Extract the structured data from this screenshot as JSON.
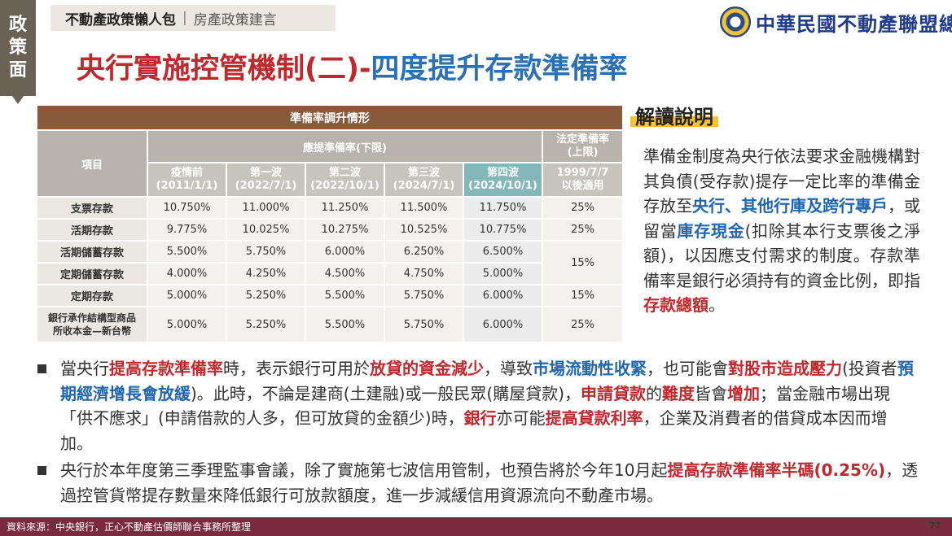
{
  "side_tab": [
    "政",
    "策",
    "面"
  ],
  "breadcrumb": {
    "main": "不動產政策懶人包",
    "sep": "|",
    "sub": "房產政策建言"
  },
  "logo": {
    "text": "中華民國不動產聯盟總會"
  },
  "title": {
    "part1": "央行實施控管機制(二)-",
    "part2": "四度提升存款準備率"
  },
  "table": {
    "caption": "準備率調升情形",
    "item_header": "項目",
    "group_header": "應提準備率(下限)",
    "legal_header": "法定準備率\n(上限)",
    "columns": [
      {
        "name": "疫情前",
        "date": "(2011/1/1)"
      },
      {
        "name": "第一波",
        "date": "(2022/7/1)"
      },
      {
        "name": "第二波",
        "date": "(2022/10/1)"
      },
      {
        "name": "第三波",
        "date": "(2024/7/1)"
      },
      {
        "name": "第四波",
        "date": "(2024/10/1)"
      }
    ],
    "legal_col": {
      "line1": "1999/7/7",
      "line2": "以後適用"
    },
    "rows": [
      {
        "label": "支票存款",
        "values": [
          "10.750%",
          "11.000%",
          "11.250%",
          "11.500%",
          "11.750%"
        ],
        "legal": "25%"
      },
      {
        "label": "活期存款",
        "values": [
          "9.775%",
          "10.025%",
          "10.275%",
          "10.525%",
          "10.775%"
        ],
        "legal": "25%"
      },
      {
        "label": "活期儲蓄存款",
        "values": [
          "5.500%",
          "5.750%",
          "6.000%",
          "6.250%",
          "6.500%"
        ],
        "legal": "15%"
      },
      {
        "label": "定期儲蓄存款",
        "values": [
          "4.000%",
          "4.250%",
          "4.500%",
          "4.750%",
          "5.000%"
        ],
        "legal": ""
      },
      {
        "label": "定期存款",
        "values": [
          "5.000%",
          "5.250%",
          "5.500%",
          "5.750%",
          "6.000%"
        ],
        "legal": "15%"
      },
      {
        "label": "銀行承作結構型商品\n所收本金—新台幣",
        "values": [
          "5.000%",
          "5.250%",
          "5.500%",
          "5.750%",
          "6.000%"
        ],
        "legal": "25%"
      }
    ]
  },
  "explain": {
    "heading": "解讀說明",
    "p1": "準備金制度為央行依法要求金融機構對其負債(受存款)提存一定比率的準備金存放至",
    "hl1": "央行",
    "sep1": "、",
    "hl2": "其他行庫及跨行專戶",
    "p2": "，或留當",
    "hl3": "庫存現金",
    "p3": "(扣除其本行支票後之淨額)，以因應支付需求的制度。存款準備率是銀行必須持有的資金比例，即指",
    "hl4": "存款總額",
    "p4": "。"
  },
  "bullets": {
    "b1": {
      "t1": "當央行",
      "r1": "提高存款準備率",
      "t2": "時，表示銀行可用於",
      "r2": "放貸的資金減少",
      "t3": "，導致",
      "u1": "市場流動性收緊",
      "t4": "，也可能會",
      "r3": "對股市造成壓力",
      "t5": "(投資者",
      "u2": "預期經濟增長會放緩",
      "t6": ")。此時，不論是建商(土建融)或一般民眾(購屋貸款)，",
      "r4": "申請貸款",
      "t7": "的",
      "r5": "難度",
      "t8": "皆會",
      "r6": "增加",
      "t9": "；當金融市場出現「供不應求」(申請借款的人多，但可放貸的金額少)時，",
      "r7": "銀行",
      "t10": "亦可能",
      "r8": "提高貸款利率",
      "t11": "，企業及消費者的借貸成本因而增加。"
    },
    "b2": {
      "t1": "央行於本年度第三季理監事會議，除了實施第七波信用管制，也預告將於今年10月起",
      "r1": "提高存款準備率半碼(0.25%)",
      "t2": "，透過控管貨幣提存數量來降低銀行可放款額度，進一步減緩信用資源流向不動產市場。"
    }
  },
  "footer": {
    "source": "資料來源：中央銀行，正心不動產估價師聯合事務所整理",
    "page": "77"
  }
}
